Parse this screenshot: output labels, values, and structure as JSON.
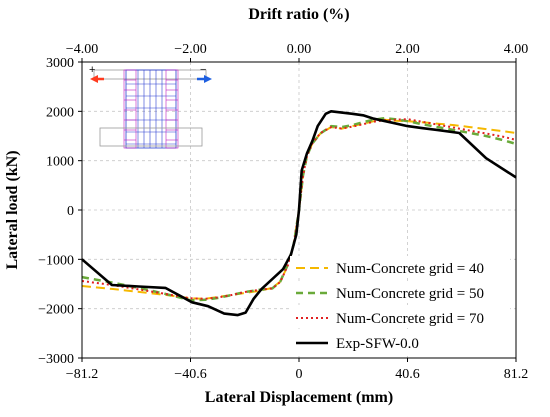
{
  "chart_data": {
    "type": "line",
    "xlabel": "Lateral Displacement (mm)",
    "ylabel": "Lateral load (kN)",
    "x2label": "Drift ratio (%)",
    "xlim": [
      -81.2,
      81.2
    ],
    "ylim": [
      -3000,
      3000
    ],
    "x2lim": [
      -4.0,
      4.0
    ],
    "x_ticks": [
      "−81.2",
      "−40.6",
      "0",
      "40.6",
      "81.2"
    ],
    "x_tick_values": [
      -81.2,
      -40.6,
      0,
      40.6,
      81.2
    ],
    "x2_ticks": [
      "−4.00",
      "−2.00",
      "0.00",
      "2.00",
      "4.00"
    ],
    "x2_tick_values": [
      -4.0,
      -2.0,
      0.0,
      2.0,
      4.0
    ],
    "y_ticks": [
      "3000",
      "2000",
      "1000",
      "0",
      "−1000",
      "−2000",
      "−3000"
    ],
    "y_tick_values": [
      3000,
      2000,
      1000,
      0,
      -1000,
      -2000,
      -3000
    ],
    "grid": true,
    "legend_position": "bottom-right",
    "series": [
      {
        "name": "Num-Concrete grid = 40",
        "color": "#f5b800",
        "dash": "long-dash",
        "points": [
          [
            -81.2,
            -1540
          ],
          [
            -70,
            -1600
          ],
          [
            -60,
            -1660
          ],
          [
            -50,
            -1720
          ],
          [
            -40.6,
            -1790
          ],
          [
            -35,
            -1800
          ],
          [
            -30,
            -1760
          ],
          [
            -25,
            -1720
          ],
          [
            -20,
            -1680
          ],
          [
            -15,
            -1640
          ],
          [
            -10,
            -1580
          ],
          [
            -7,
            -1450
          ],
          [
            -4,
            -1100
          ],
          [
            -2,
            -700
          ],
          [
            0,
            0
          ],
          [
            1.5,
            700
          ],
          [
            3,
            1100
          ],
          [
            5,
            1350
          ],
          [
            8,
            1550
          ],
          [
            12,
            1680
          ],
          [
            16,
            1650
          ],
          [
            20,
            1700
          ],
          [
            24,
            1750
          ],
          [
            28,
            1800
          ],
          [
            32,
            1830
          ],
          [
            36,
            1810
          ],
          [
            40.6,
            1800
          ],
          [
            46,
            1780
          ],
          [
            52,
            1750
          ],
          [
            58,
            1720
          ],
          [
            64,
            1680
          ],
          [
            70,
            1640
          ],
          [
            76,
            1600
          ],
          [
            81.2,
            1560
          ]
        ]
      },
      {
        "name": "Num-Concrete grid = 50",
        "color": "#6aaa3a",
        "dash": "dash",
        "points": [
          [
            -81.2,
            -1360
          ],
          [
            -70,
            -1470
          ],
          [
            -60,
            -1580
          ],
          [
            -50,
            -1700
          ],
          [
            -40.6,
            -1830
          ],
          [
            -35,
            -1820
          ],
          [
            -30,
            -1780
          ],
          [
            -25,
            -1720
          ],
          [
            -20,
            -1660
          ],
          [
            -15,
            -1620
          ],
          [
            -10,
            -1590
          ],
          [
            -7,
            -1450
          ],
          [
            -4,
            -1080
          ],
          [
            -2,
            -700
          ],
          [
            0,
            0
          ],
          [
            1.5,
            700
          ],
          [
            3,
            1100
          ],
          [
            5,
            1350
          ],
          [
            8,
            1550
          ],
          [
            12,
            1700
          ],
          [
            16,
            1680
          ],
          [
            20,
            1720
          ],
          [
            24,
            1780
          ],
          [
            28,
            1830
          ],
          [
            32,
            1860
          ],
          [
            36,
            1840
          ],
          [
            40.6,
            1800
          ],
          [
            46,
            1740
          ],
          [
            52,
            1680
          ],
          [
            58,
            1620
          ],
          [
            64,
            1560
          ],
          [
            70,
            1500
          ],
          [
            76,
            1420
          ],
          [
            81.2,
            1340
          ]
        ]
      },
      {
        "name": "Num-Concrete grid = 70",
        "color": "#e02020",
        "dash": "dot",
        "points": [
          [
            -81.2,
            -1440
          ],
          [
            -70,
            -1520
          ],
          [
            -60,
            -1610
          ],
          [
            -50,
            -1700
          ],
          [
            -40.6,
            -1790
          ],
          [
            -35,
            -1800
          ],
          [
            -30,
            -1770
          ],
          [
            -25,
            -1720
          ],
          [
            -20,
            -1660
          ],
          [
            -15,
            -1620
          ],
          [
            -10,
            -1590
          ],
          [
            -7,
            -1460
          ],
          [
            -4,
            -1100
          ],
          [
            -2,
            -700
          ],
          [
            0,
            0
          ],
          [
            1.5,
            700
          ],
          [
            3,
            1100
          ],
          [
            5,
            1350
          ],
          [
            8,
            1560
          ],
          [
            12,
            1680
          ],
          [
            16,
            1650
          ],
          [
            20,
            1690
          ],
          [
            24,
            1740
          ],
          [
            28,
            1790
          ],
          [
            32,
            1820
          ],
          [
            36,
            1830
          ],
          [
            40.6,
            1840
          ],
          [
            46,
            1790
          ],
          [
            52,
            1730
          ],
          [
            58,
            1670
          ],
          [
            64,
            1610
          ],
          [
            70,
            1550
          ],
          [
            76,
            1490
          ],
          [
            81.2,
            1420
          ]
        ]
      },
      {
        "name": "Exp-SFW-0.0",
        "color": "#000000",
        "dash": "solid",
        "points": [
          [
            -81.2,
            -1000
          ],
          [
            -70,
            -1520
          ],
          [
            -60,
            -1550
          ],
          [
            -50,
            -1580
          ],
          [
            -40,
            -1870
          ],
          [
            -34,
            -1950
          ],
          [
            -28,
            -2100
          ],
          [
            -23,
            -2130
          ],
          [
            -20,
            -2080
          ],
          [
            -17,
            -1800
          ],
          [
            -14,
            -1600
          ],
          [
            -10,
            -1400
          ],
          [
            -6,
            -1200
          ],
          [
            -3,
            -900
          ],
          [
            -1,
            -500
          ],
          [
            0,
            0
          ],
          [
            1,
            800
          ],
          [
            3,
            1150
          ],
          [
            5,
            1400
          ],
          [
            7,
            1700
          ],
          [
            10,
            1950
          ],
          [
            12,
            2000
          ],
          [
            20,
            1950
          ],
          [
            24,
            1920
          ],
          [
            28,
            1850
          ],
          [
            34,
            1780
          ],
          [
            40.6,
            1700
          ],
          [
            46,
            1660
          ],
          [
            52,
            1620
          ],
          [
            60,
            1560
          ],
          [
            70,
            1050
          ],
          [
            81.2,
            660
          ]
        ]
      }
    ]
  }
}
